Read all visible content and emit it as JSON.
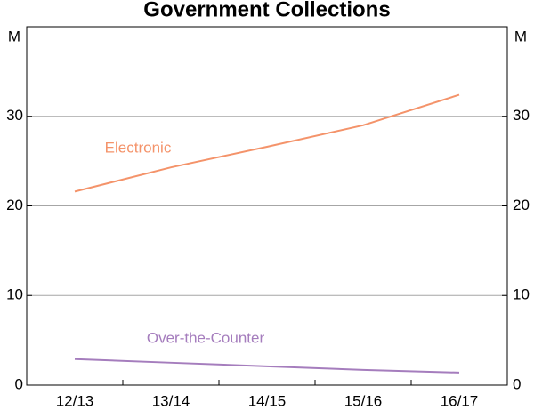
{
  "chart_data": {
    "type": "line",
    "title": "Government Collections",
    "y_label": "M",
    "y2_label": "M",
    "categories": [
      "12/13",
      "13/14",
      "14/15",
      "15/16",
      "16/17"
    ],
    "series": [
      {
        "name": "Electronic",
        "color": "#f4936a",
        "values": [
          21.6,
          24.3,
          26.6,
          29.0,
          32.4
        ]
      },
      {
        "name": "Over-the-Counter",
        "color": "#a57dbd",
        "values": [
          2.9,
          2.5,
          2.1,
          1.7,
          1.4
        ]
      }
    ],
    "ylim": [
      0,
      40
    ],
    "yticks": [
      0,
      10,
      20,
      30
    ],
    "y2lim": [
      0,
      40
    ],
    "y2ticks": [
      0,
      10,
      20,
      30
    ],
    "grid": true
  }
}
